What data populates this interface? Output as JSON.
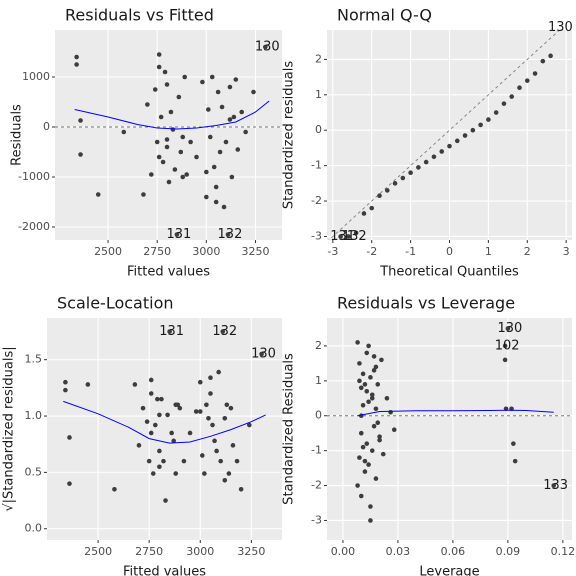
{
  "chart_data": [
    {
      "type": "scatter",
      "title": "Residuals vs Fitted",
      "xlabel": "Fitted values",
      "ylabel": "Residuals",
      "point_color": "#3d3d3d",
      "x": [
        2340,
        2340,
        2360,
        2360,
        2450,
        2580,
        2680,
        2700,
        2720,
        2740,
        2750,
        2760,
        2760,
        2770,
        2780,
        2790,
        2800,
        2800,
        2810,
        2820,
        2830,
        2840,
        2850,
        2860,
        2870,
        2880,
        2890,
        2900,
        2920,
        2950,
        2980,
        3000,
        3010,
        3020,
        3030,
        3040,
        3050,
        3060,
        3070,
        3080,
        3090,
        3100,
        3110,
        3120,
        3130,
        3140,
        3150,
        3160,
        3180,
        3200,
        3240,
        3300,
        2760,
        2800,
        2880,
        3050,
        3000,
        3120
      ],
      "values": [
        1400,
        1250,
        130,
        -550,
        -1350,
        -100,
        -1350,
        450,
        -950,
        750,
        -300,
        1450,
        -600,
        200,
        -700,
        1100,
        -400,
        850,
        -1100,
        300,
        -50,
        -850,
        -2150,
        600,
        -500,
        -200,
        1000,
        -950,
        -300,
        -600,
        900,
        -1400,
        350,
        -200,
        1000,
        -800,
        -1200,
        700,
        -500,
        400,
        -1600,
        -300,
        -2150,
        800,
        -1000,
        200,
        950,
        -450,
        300,
        -100,
        700,
        1600,
        1200,
        -250,
        -1000,
        -1500,
        -900,
        150
      ],
      "smooth": {
        "color": "#0000ff",
        "x": [
          2330,
          2500,
          2650,
          2750,
          2850,
          2950,
          3050,
          3150,
          3250,
          3320
        ],
        "values": [
          350,
          200,
          50,
          -20,
          -40,
          -20,
          30,
          100,
          300,
          520
        ]
      },
      "hline": 0,
      "annotations": [
        {
          "text": "130",
          "x": 3300,
          "y": 1600
        },
        {
          "text": "131",
          "x": 2850,
          "y": -2150
        },
        {
          "text": "132",
          "x": 3110,
          "y": -2150
        }
      ],
      "xlim": [
        2230,
        3385
      ],
      "ylim": [
        -2260,
        1940
      ],
      "xticks": [
        2500,
        2750,
        3000,
        3250
      ],
      "yticks": [
        -2000,
        -1000,
        0,
        1000
      ],
      "grid": true
    },
    {
      "type": "scatter",
      "title": "Normal Q-Q",
      "xlabel": "Theoretical Quantiles",
      "ylabel": "Standardized residuals",
      "point_color": "#3d3d3d",
      "x": [
        -2.8,
        -2.6,
        -2.4,
        -2.2,
        -2.0,
        -1.8,
        -1.6,
        -1.4,
        -1.2,
        -1.0,
        -0.8,
        -0.6,
        -0.4,
        -0.2,
        0.0,
        0.2,
        0.4,
        0.6,
        0.8,
        1.0,
        1.2,
        1.4,
        1.6,
        1.8,
        2.0,
        2.2,
        2.4,
        2.6,
        2.8
      ],
      "values": [
        -3.0,
        -3.0,
        -2.9,
        -2.35,
        -2.2,
        -1.85,
        -1.7,
        -1.5,
        -1.35,
        -1.2,
        -1.05,
        -0.9,
        -0.75,
        -0.6,
        -0.45,
        -0.3,
        -0.15,
        0.0,
        0.15,
        0.3,
        0.5,
        0.75,
        0.95,
        1.2,
        1.4,
        1.6,
        1.95,
        2.1,
        2.9
      ],
      "abline": [
        0,
        1
      ],
      "annotations": [
        {
          "text": "131",
          "x": -2.8,
          "y": -3.0
        },
        {
          "text": "132",
          "x": -2.5,
          "y": -3.0
        },
        {
          "text": "130",
          "x": 2.8,
          "y": 2.9
        }
      ],
      "xlim": [
        -3.15,
        3.15
      ],
      "ylim": [
        -3.1,
        2.83
      ],
      "xticks": [
        -3,
        -2,
        -1,
        0,
        1,
        2,
        3
      ],
      "yticks": [
        -3,
        -2,
        -1,
        0,
        1,
        2
      ],
      "grid": true
    },
    {
      "type": "scatter",
      "title": "Scale-Location",
      "xlabel": "Fitted values",
      "ylabel": "√|Standardized residuals|",
      "point_color": "#3d3d3d",
      "x": [
        2340,
        2340,
        2360,
        2360,
        2450,
        2580,
        2680,
        2700,
        2720,
        2740,
        2750,
        2760,
        2760,
        2770,
        2780,
        2790,
        2800,
        2800,
        2810,
        2820,
        2830,
        2840,
        2850,
        2860,
        2870,
        2880,
        2890,
        2900,
        2920,
        2950,
        2980,
        3000,
        3010,
        3020,
        3030,
        3040,
        3050,
        3060,
        3070,
        3080,
        3090,
        3100,
        3110,
        3120,
        3130,
        3140,
        3150,
        3160,
        3180,
        3200,
        3240,
        3300,
        2760,
        2800,
        2880,
        3050,
        3000,
        3120
      ],
      "values": [
        1.3,
        1.23,
        0.4,
        0.81,
        1.28,
        0.35,
        1.28,
        0.74,
        1.07,
        0.95,
        0.6,
        1.32,
        0.85,
        0.49,
        0.92,
        1.15,
        0.69,
        1.01,
        1.15,
        0.6,
        0.25,
        1.01,
        1.75,
        0.85,
        0.78,
        0.49,
        1.1,
        1.07,
        0.6,
        0.85,
        1.04,
        1.3,
        0.65,
        0.49,
        1.1,
        0.98,
        1.2,
        0.92,
        0.78,
        0.69,
        1.39,
        0.6,
        1.75,
        0.98,
        1.1,
        0.49,
        1.07,
        0.74,
        0.6,
        0.35,
        0.92,
        1.55,
        1.2,
        0.55,
        1.1,
        1.34,
        1.04,
        0.43
      ],
      "smooth": {
        "color": "#0000ff",
        "x": [
          2330,
          2500,
          2650,
          2750,
          2850,
          2950,
          3050,
          3150,
          3250,
          3320
        ],
        "values": [
          1.13,
          1.02,
          0.9,
          0.8,
          0.76,
          0.77,
          0.82,
          0.88,
          0.95,
          1.01
        ]
      },
      "annotations": [
        {
          "text": "131",
          "x": 2850,
          "y": 1.75
        },
        {
          "text": "132",
          "x": 3110,
          "y": 1.75
        },
        {
          "text": "130",
          "x": 3300,
          "y": 1.55
        }
      ],
      "xlim": [
        2250,
        3400
      ],
      "ylim": [
        -0.1,
        1.87
      ],
      "xticks": [
        2500,
        2750,
        3000,
        3250
      ],
      "yticks": [
        {
          "value": 0,
          "label": "0.0"
        },
        {
          "value": 0.5,
          "label": "0.5"
        },
        {
          "value": 1,
          "label": "1.0"
        },
        {
          "value": 1.5,
          "label": "1.5"
        }
      ],
      "grid": true
    },
    {
      "type": "scatter",
      "title": "Residuals vs Leverage",
      "xlabel": "Leverage",
      "ylabel": "Standardized Residuals",
      "point_color": "#3d3d3d",
      "x": [
        0.008,
        0.008,
        0.009,
        0.009,
        0.01,
        0.01,
        0.01,
        0.011,
        0.011,
        0.012,
        0.012,
        0.013,
        0.013,
        0.014,
        0.014,
        0.015,
        0.015,
        0.016,
        0.016,
        0.017,
        0.017,
        0.018,
        0.018,
        0.019,
        0.02,
        0.021,
        0.022,
        0.024,
        0.026,
        0.028,
        0.009,
        0.011,
        0.013,
        0.015,
        0.017,
        0.019,
        0.012,
        0.016,
        0.01,
        0.014,
        0.02,
        0.018,
        0.0885,
        0.0885,
        0.089,
        0.09,
        0.092,
        0.093,
        0.094,
        0.115
      ],
      "values": [
        2.1,
        -2.0,
        1.5,
        -1.2,
        0.8,
        -0.5,
        -2.3,
        1.2,
        0.3,
        -1.6,
        0.9,
        1.8,
        -0.8,
        0.4,
        -1.4,
        1.1,
        -3.0,
        0.6,
        -1.0,
        1.3,
        -0.3,
        0.2,
        -1.8,
        0.9,
        -0.6,
        1.6,
        -1.1,
        0.5,
        0.1,
        -0.4,
        1.0,
        -0.9,
        0.7,
        -2.6,
        1.7,
        -0.2,
        -1.3,
        0.5,
        0.0,
        2.0,
        -0.7,
        1.4,
        2.0,
        1.6,
        0.2,
        2.5,
        0.2,
        -0.8,
        -1.3,
        -2.0
      ],
      "smooth": {
        "color": "#0000ff",
        "x": [
          0.008,
          0.02,
          0.04,
          0.06,
          0.08,
          0.09,
          0.1,
          0.115
        ],
        "values": [
          0.0,
          0.12,
          0.14,
          0.14,
          0.15,
          0.16,
          0.15,
          0.1
        ]
      },
      "hline": 0,
      "annotations": [
        {
          "text": "130",
          "x": 0.09,
          "y": 2.5
        },
        {
          "text": "102",
          "x": 0.0885,
          "y": 2.0
        },
        {
          "text": "133",
          "x": 0.115,
          "y": -2.0
        }
      ],
      "xlim": [
        -0.0087,
        0.125
      ],
      "ylim": [
        -3.56,
        2.8
      ],
      "xticks": [
        {
          "value": 0,
          "label": "0.00"
        },
        {
          "value": 0.03,
          "label": "0.03"
        },
        {
          "value": 0.06,
          "label": "0.06"
        },
        {
          "value": 0.09,
          "label": "0.09"
        },
        {
          "value": 0.12,
          "label": "0.12"
        }
      ],
      "yticks": [
        -3,
        -2,
        -1,
        0,
        1,
        2
      ],
      "grid": true
    }
  ]
}
